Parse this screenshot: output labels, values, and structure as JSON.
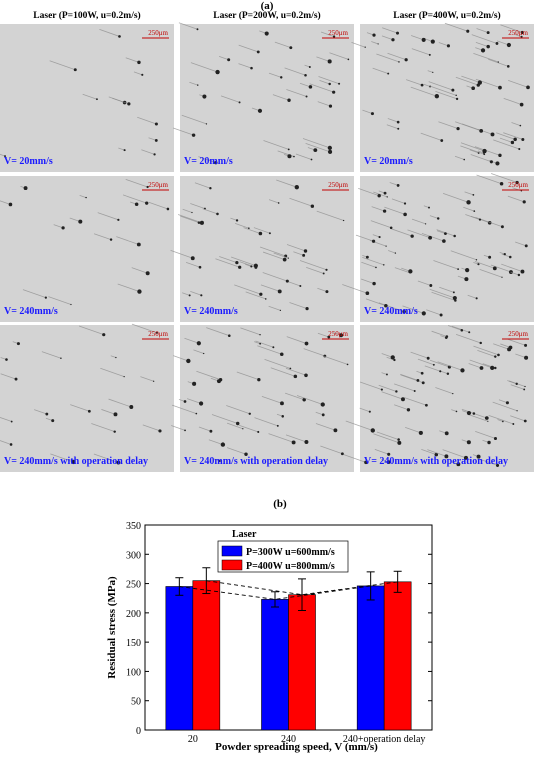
{
  "panel_a": {
    "label": "(a)",
    "columns": [
      "Laser (P=100W, u=0.2m/s)",
      "Laser (P=200W, u=0.2m/s)",
      "Laser (P=400W, u=0.2m/s)"
    ],
    "rows": [
      "V= 20mm/s",
      "V= 240mm/s",
      "V= 240mm/s with operation delay"
    ],
    "scale_bar": "250μm"
  },
  "chart_data": {
    "type": "bar",
    "label": "(b)",
    "y_label": "Residual stress (MPa)",
    "x_label": "Powder spreading speed, V (mm/s)",
    "legend_title": "Laser",
    "categories": [
      "20",
      "240",
      "240+operation delay"
    ],
    "series": [
      {
        "name": "P=300W u=600mm/s",
        "color": "#0000ff",
        "values": [
          245,
          223,
          246
        ],
        "errors": [
          15,
          13,
          24
        ]
      },
      {
        "name": "P=400W u=800mm/s",
        "color": "#ff0000",
        "values": [
          255,
          231,
          253
        ],
        "errors": [
          22,
          27,
          18
        ]
      }
    ],
    "ylim": [
      0,
      350
    ],
    "yticks": [
      0,
      50,
      100,
      150,
      200,
      250,
      300,
      350
    ]
  }
}
